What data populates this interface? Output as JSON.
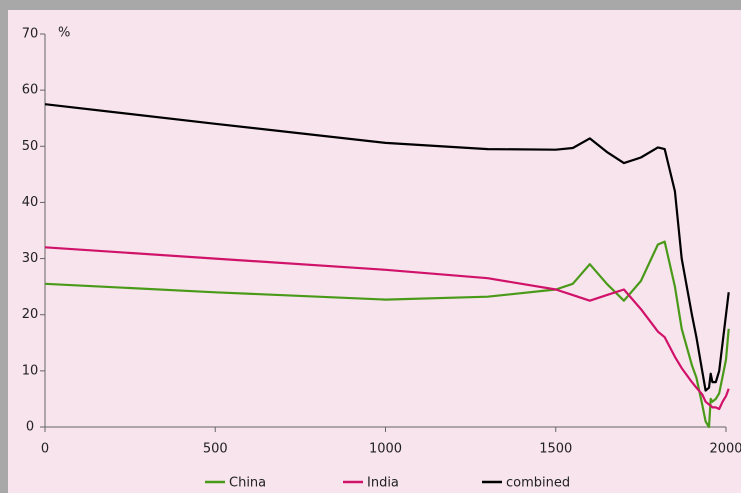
{
  "chart_data": {
    "type": "line",
    "y_label": "%",
    "x": [
      0,
      500,
      1000,
      1300,
      1500,
      1550,
      1600,
      1650,
      1700,
      1750,
      1800,
      1820,
      1850,
      1870,
      1900,
      1913,
      1930,
      1940,
      1950,
      1955,
      1960,
      1970,
      1980,
      1990,
      2000,
      2008
    ],
    "series": [
      {
        "name": "China",
        "color": "#4a9a1a",
        "values": [
          25.5,
          24,
          22.7,
          23.2,
          24.5,
          25.5,
          29,
          25.5,
          22.5,
          26,
          32.5,
          33,
          25,
          17.5,
          11,
          8.8,
          4,
          1,
          0,
          5,
          4.5,
          5,
          6,
          9,
          12,
          17.5
        ]
      },
      {
        "name": "India",
        "color": "#d0126a",
        "values": [
          32,
          30,
          28,
          26.5,
          24.5,
          23.5,
          22.5,
          23.5,
          24.5,
          21,
          17,
          16,
          12.5,
          10.5,
          8,
          7,
          5.8,
          4.5,
          4,
          3.8,
          3.5,
          3.5,
          3.2,
          4.5,
          5.5,
          6.8
        ]
      },
      {
        "name": "combined",
        "color": "#000000",
        "values": [
          57.5,
          54,
          50.6,
          49.5,
          49.4,
          49.7,
          51.4,
          49,
          47,
          48,
          49.8,
          49.5,
          42,
          30,
          20,
          16,
          10,
          6.5,
          7,
          9.5,
          8,
          8,
          10,
          15,
          20,
          24
        ]
      }
    ],
    "xlim": [
      0,
      2000
    ],
    "xticks": [
      0,
      500,
      1000,
      1500,
      2000
    ],
    "ylim": [
      0,
      70
    ],
    "yticks": [
      0,
      10,
      20,
      30,
      40,
      50,
      60,
      70
    ]
  }
}
